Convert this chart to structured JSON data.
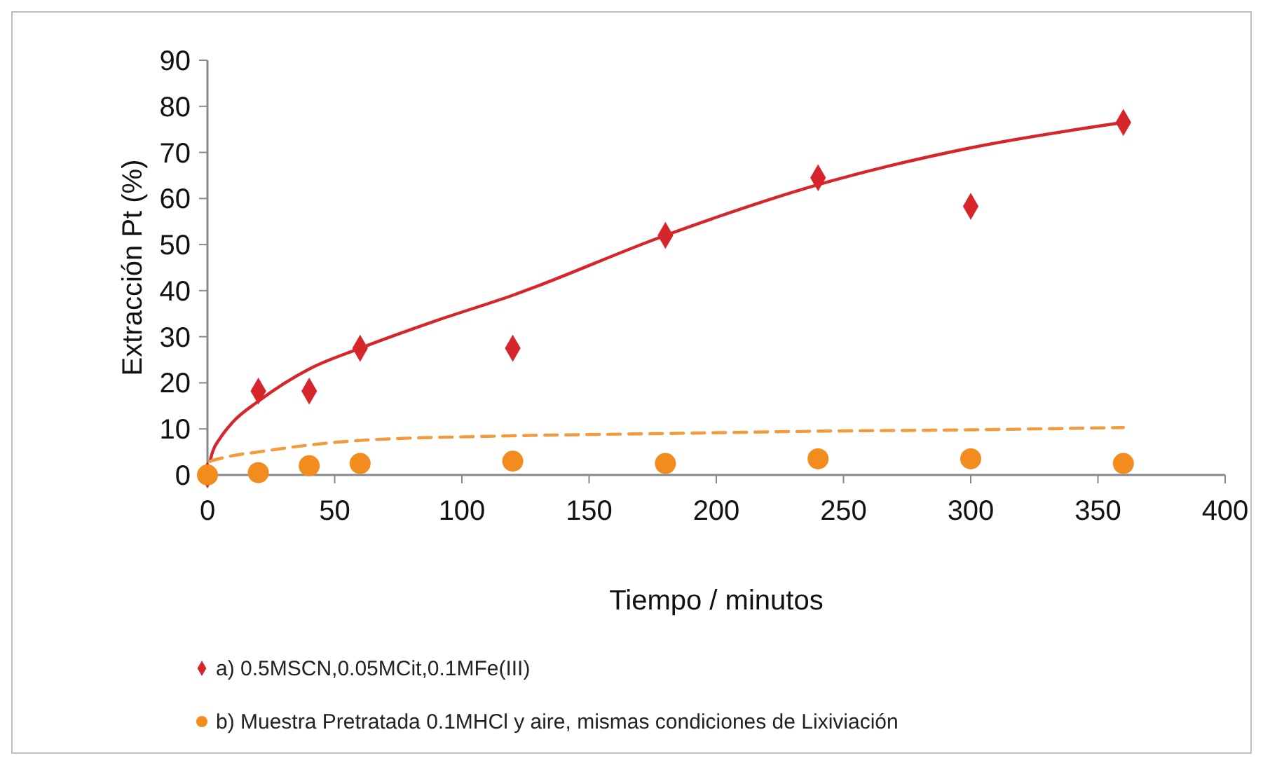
{
  "chart_data": {
    "type": "scatter",
    "xlabel": "Tiempo / minutos",
    "ylabel": "Extracción Pt (%)",
    "xlim": [
      0,
      400
    ],
    "xticks": [
      0,
      50,
      100,
      150,
      200,
      250,
      300,
      350,
      400
    ],
    "ylim": [
      0,
      90
    ],
    "yticks": [
      0,
      10,
      20,
      30,
      40,
      50,
      60,
      70,
      80,
      90
    ],
    "grid": false,
    "legend": "bottom",
    "series": [
      {
        "name": "a) 0.5MSCN,0.05MCit,0.1MFe(III)",
        "color": "#d7262b",
        "marker": "diamond",
        "x": [
          0,
          20,
          40,
          60,
          120,
          180,
          240,
          300,
          360
        ],
        "values": [
          0,
          18.2,
          18.2,
          27.5,
          27.5,
          52,
          64.5,
          58.3,
          76.5
        ]
      },
      {
        "name": "b) Muestra Pretratada 0.1MHCl y aire, mismas condiciones de Lixiviación",
        "color": "#f28c1e",
        "marker": "circle",
        "x": [
          0,
          20,
          40,
          60,
          120,
          180,
          240,
          300,
          360
        ],
        "values": [
          0,
          0.5,
          2,
          2.5,
          3,
          2.5,
          3.5,
          3.5,
          2.5
        ]
      },
      {
        "type": "line",
        "color": "#d7262b",
        "line_style": "solid",
        "x": [
          1,
          2,
          5,
          10,
          20,
          40,
          60,
          90,
          120,
          180,
          240,
          300,
          360
        ],
        "values": [
          3,
          5,
          8,
          11.5,
          16,
          23,
          27.5,
          33.5,
          39,
          52,
          63,
          71,
          76.5
        ]
      },
      {
        "type": "line",
        "color": "#f39a3c",
        "line_style": "dashed",
        "x": [
          1,
          10,
          20,
          40,
          60,
          120,
          180,
          240,
          300,
          360
        ],
        "values": [
          3,
          4.2,
          5,
          6.5,
          7.5,
          8.5,
          9,
          9.5,
          9.8,
          10.3
        ]
      }
    ]
  }
}
